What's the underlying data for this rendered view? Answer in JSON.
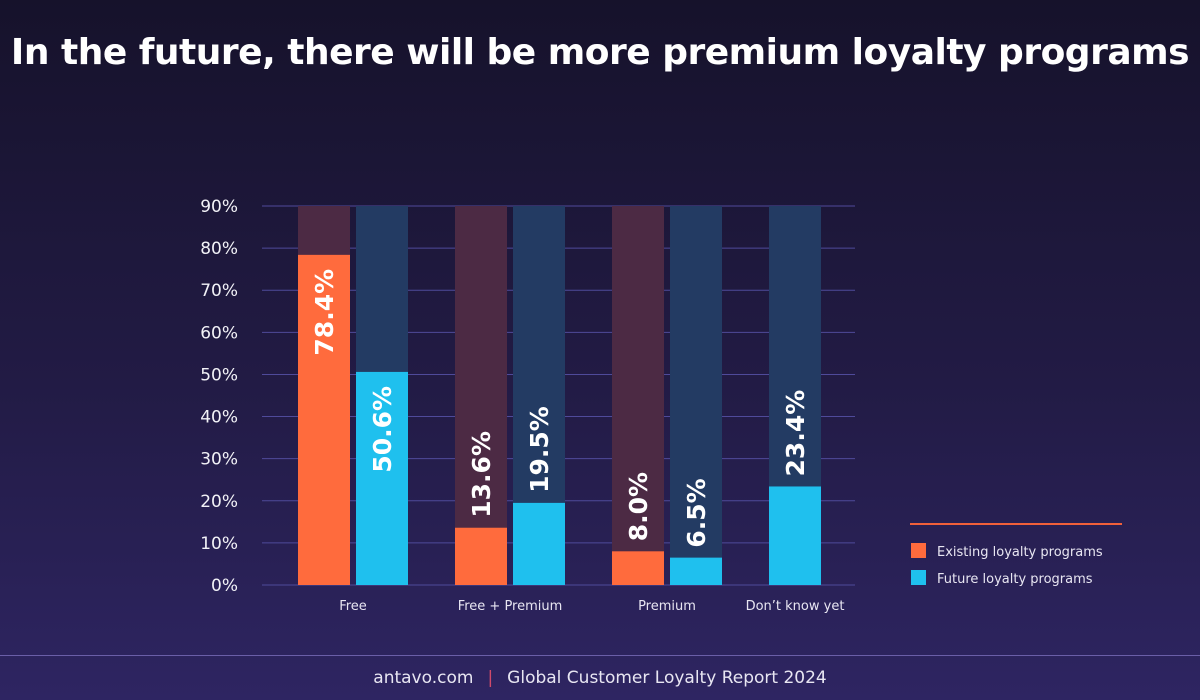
{
  "chart_data": {
    "type": "bar",
    "title": "In the future, there will be more premium loyalty programs",
    "categories": [
      "Free",
      "Free + Premium",
      "Premium",
      "Don’t know yet"
    ],
    "series": [
      {
        "name": "Existing loyalty programs",
        "values": [
          78.4,
          13.6,
          8.0,
          null
        ],
        "labels": [
          "78.4%",
          "13.6%",
          "8.0%",
          null
        ],
        "color": "#ff6b3d",
        "track_color": "#4c2a44"
      },
      {
        "name": "Future loyalty programs",
        "values": [
          50.6,
          19.5,
          6.5,
          23.4
        ],
        "labels": [
          "50.6%",
          "19.5%",
          "6.5%",
          "23.4%"
        ],
        "color": "#1fc0ee",
        "track_color": "#233b63"
      }
    ],
    "yticks": [
      "0%",
      "10%",
      "20%",
      "30%",
      "40%",
      "50%",
      "60%",
      "70%",
      "80%",
      "90%"
    ],
    "ylim": [
      0,
      90
    ],
    "grid": true,
    "legend_placement": "right",
    "legend_accent_color": "#f0603a"
  },
  "footer": {
    "site": "antavo.com",
    "separator": "|",
    "report": "Global Customer Loyalty Report 2024"
  }
}
